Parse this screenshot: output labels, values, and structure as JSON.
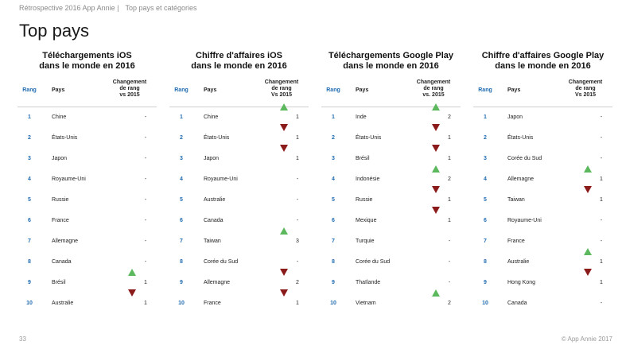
{
  "breadcrumb": {
    "part1": "Rétrospective 2016 App Annie |",
    "part2": "Top pays et catégories"
  },
  "title": "Top pays",
  "headers": {
    "rang": "Rang",
    "pays": "Pays"
  },
  "panels": [
    {
      "title1": "Téléchargements iOS",
      "title2": "dans le monde en 2016",
      "chg": [
        "Changement",
        "de rang",
        "vs 2015"
      ],
      "rows": [
        {
          "rank": "1",
          "country": "Chine",
          "change": "-",
          "dir": ""
        },
        {
          "rank": "2",
          "country": "États-Unis",
          "change": "-",
          "dir": ""
        },
        {
          "rank": "3",
          "country": "Japon",
          "change": "-",
          "dir": ""
        },
        {
          "rank": "4",
          "country": "Royaume-Uni",
          "change": "-",
          "dir": ""
        },
        {
          "rank": "5",
          "country": "Russie",
          "change": "-",
          "dir": ""
        },
        {
          "rank": "6",
          "country": "France",
          "change": "-",
          "dir": ""
        },
        {
          "rank": "7",
          "country": "Allemagne",
          "change": "-",
          "dir": ""
        },
        {
          "rank": "8",
          "country": "Canada",
          "change": "-",
          "dir": ""
        },
        {
          "rank": "9",
          "country": "Brésil",
          "change": "1",
          "dir": "up"
        },
        {
          "rank": "10",
          "country": "Australie",
          "change": "1",
          "dir": "down"
        }
      ]
    },
    {
      "title1": "Chiffre d'affaires iOS",
      "title2": "dans le monde en 2016",
      "chg": [
        "Changement",
        "de rang",
        "Vs 2015"
      ],
      "rows": [
        {
          "rank": "1",
          "country": "Chine",
          "change": "1",
          "dir": "up"
        },
        {
          "rank": "2",
          "country": "États-Unis",
          "change": "1",
          "dir": "down"
        },
        {
          "rank": "3",
          "country": "Japon",
          "change": "1",
          "dir": "down"
        },
        {
          "rank": "4",
          "country": "Royaume-Uni",
          "change": "-",
          "dir": ""
        },
        {
          "rank": "5",
          "country": "Australie",
          "change": "-",
          "dir": ""
        },
        {
          "rank": "6",
          "country": "Canada",
          "change": "-",
          "dir": ""
        },
        {
          "rank": "7",
          "country": "Taiwan",
          "change": "3",
          "dir": "up"
        },
        {
          "rank": "8",
          "country": "Corée du Sud",
          "change": "-",
          "dir": ""
        },
        {
          "rank": "9",
          "country": "Allemagne",
          "change": "2",
          "dir": "down"
        },
        {
          "rank": "10",
          "country": "France",
          "change": "1",
          "dir": "down"
        }
      ]
    },
    {
      "title1": "Téléchargements Google Play",
      "title2": "dans le monde en 2016",
      "chg": [
        "Changement",
        "de rang",
        "vs. 2015"
      ],
      "rows": [
        {
          "rank": "1",
          "country": "Inde",
          "change": "2",
          "dir": "up"
        },
        {
          "rank": "2",
          "country": "États-Unis",
          "change": "1",
          "dir": "down"
        },
        {
          "rank": "3",
          "country": "Brésil",
          "change": "1",
          "dir": "down"
        },
        {
          "rank": "4",
          "country": "Indonésie",
          "change": "2",
          "dir": "up"
        },
        {
          "rank": "5",
          "country": "Russie",
          "change": "1",
          "dir": "down"
        },
        {
          "rank": "6",
          "country": "Mexique",
          "change": "1",
          "dir": "down"
        },
        {
          "rank": "7",
          "country": "Turquie",
          "change": "-",
          "dir": ""
        },
        {
          "rank": "8",
          "country": "Corée du Sud",
          "change": "-",
          "dir": ""
        },
        {
          "rank": "9",
          "country": "Thaïlande",
          "change": "-",
          "dir": ""
        },
        {
          "rank": "10",
          "country": "Vietnam",
          "change": "2",
          "dir": "up"
        }
      ]
    },
    {
      "title1": "Chiffre d'affaires Google Play",
      "title2": "dans le monde en 2016",
      "chg": [
        "Changement",
        "de rang",
        "Vs 2015"
      ],
      "rows": [
        {
          "rank": "1",
          "country": "Japon",
          "change": "-",
          "dir": ""
        },
        {
          "rank": "2",
          "country": "États-Unis",
          "change": "-",
          "dir": ""
        },
        {
          "rank": "3",
          "country": "Corée du Sud",
          "change": "-",
          "dir": ""
        },
        {
          "rank": "4",
          "country": "Allemagne",
          "change": "1",
          "dir": "up"
        },
        {
          "rank": "5",
          "country": "Taiwan",
          "change": "1",
          "dir": "down"
        },
        {
          "rank": "6",
          "country": "Royaume-Uni",
          "change": "-",
          "dir": ""
        },
        {
          "rank": "7",
          "country": "France",
          "change": "-",
          "dir": ""
        },
        {
          "rank": "8",
          "country": "Australie",
          "change": "1",
          "dir": "up"
        },
        {
          "rank": "9",
          "country": "Hong Kong",
          "change": "1",
          "dir": "down"
        },
        {
          "rank": "10",
          "country": "Canada",
          "change": "-",
          "dir": ""
        }
      ]
    }
  ],
  "footer": {
    "page": "33",
    "copyright": "© App Annie 2017"
  },
  "colors": {
    "up": "#5cb85c",
    "down": "#8b1a1a",
    "rank": "#1f6bb0"
  }
}
